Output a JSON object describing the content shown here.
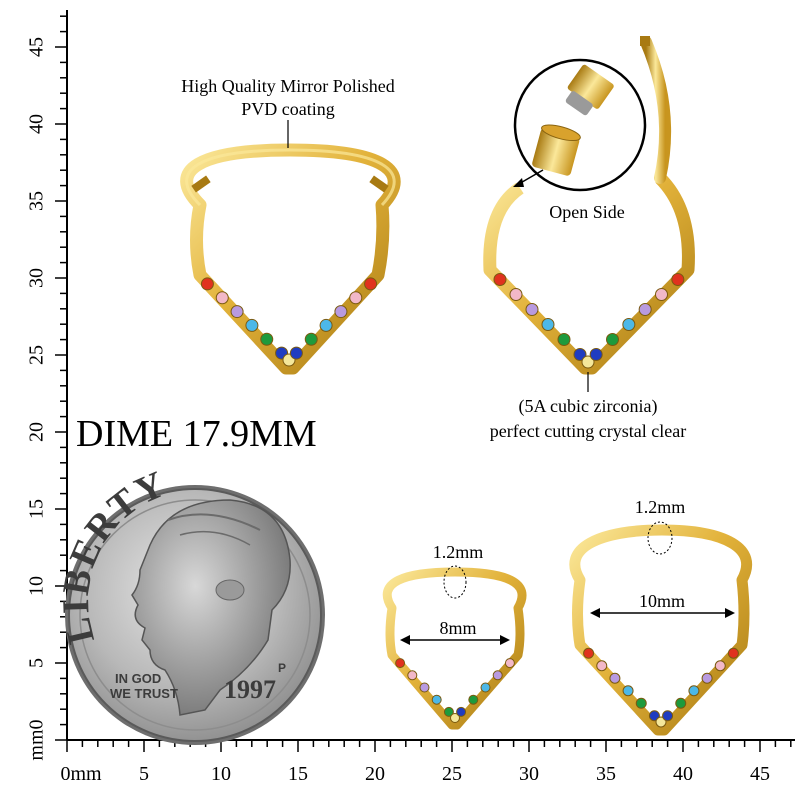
{
  "annotations": {
    "coating_line1": "High Quality Mirror Polished",
    "coating_line2": "PVD coating",
    "open_side": "Open Side",
    "zirconia_line1": "(5A cubic zirconia)",
    "zirconia_line2": "perfect cutting crystal clear",
    "dime_label": "DIME 17.9MM",
    "small_thickness": "1.2mm",
    "small_width": "8mm",
    "large_thickness": "1.2mm",
    "large_width": "10mm"
  },
  "coin": {
    "top_text": "LIBERTY",
    "motto_line1": "IN GOD",
    "motto_line2": "WE TRUST",
    "year": "1997",
    "mint_mark": "P"
  },
  "ruler": {
    "unit": "mm",
    "x_ticks": [
      "0mm",
      "5",
      "10",
      "15",
      "20",
      "25",
      "30",
      "35",
      "40",
      "45"
    ],
    "y_ticks": [
      "mm0",
      "5",
      "10",
      "15",
      "20",
      "25",
      "30",
      "35",
      "40",
      "45"
    ]
  },
  "colors": {
    "gold": "#e2b23a",
    "gold_dark": "#a87a12",
    "gold_light": "#fbe89a",
    "coin_silver": "#b8b8b8",
    "gems": [
      "#e0321e",
      "#f2b8c8",
      "#b89ae0",
      "#4cb8e8",
      "#1e9a3c",
      "#1f3cc0",
      "#f4e79a"
    ]
  }
}
